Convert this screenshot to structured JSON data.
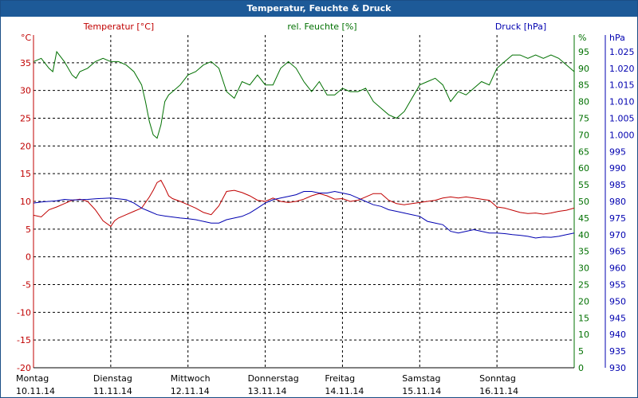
{
  "window": {
    "title": "Temperatur, Feuchte & Druck"
  },
  "colors": {
    "temperature": "#c00000",
    "humidity": "#007000",
    "pressure": "#0000b0",
    "grid": "#000000",
    "titlebar": "#1d5a98"
  },
  "chart_data": {
    "type": "line",
    "title": "Temperatur, Feuchte & Druck",
    "grid": true,
    "legend_position": "top",
    "x_tick_labels": [
      {
        "day": "Montag",
        "date": "10.11.14"
      },
      {
        "day": "Dienstag",
        "date": "11.11.14"
      },
      {
        "day": "Mittwoch",
        "date": "12.11.14"
      },
      {
        "day": "Donnerstag",
        "date": "13.11.14"
      },
      {
        "day": "Freitag",
        "date": "14.11.14"
      },
      {
        "day": "Samstag",
        "date": "15.11.14"
      },
      {
        "day": "Sonntag",
        "date": "16.11.14"
      }
    ],
    "xlim": [
      0,
      7
    ],
    "axes": {
      "temperature": {
        "label": "Temperatur [°C]",
        "unit": "°C",
        "ylim": [
          -20,
          40
        ],
        "ticks": [
          "35",
          "30",
          "25",
          "20",
          "15",
          "10",
          "5",
          "0",
          "-5",
          "-10",
          "-15",
          "-20"
        ]
      },
      "humidity": {
        "label": "rel. Feuchte [%]",
        "unit": "%",
        "ylim": [
          0,
          100
        ],
        "ticks": [
          "95",
          "90",
          "85",
          "80",
          "75",
          "70",
          "65",
          "60",
          "55",
          "50",
          "45",
          "40",
          "35",
          "30",
          "25",
          "20",
          "15",
          "10",
          "5",
          "0"
        ]
      },
      "pressure": {
        "label": "Druck [hPa]",
        "unit": "hPa",
        "ylim": [
          930,
          1030
        ],
        "ticks": [
          "1.025",
          "1.020",
          "1.015",
          "1.010",
          "1.005",
          "1.000",
          "995",
          "990",
          "985",
          "980",
          "975",
          "970",
          "965",
          "960",
          "955",
          "950",
          "945",
          "940",
          "935",
          "930"
        ]
      }
    },
    "series": [
      {
        "name": "Temperatur [°C]",
        "axis": "temperature",
        "color": "#c00000",
        "x": [
          0,
          0.1,
          0.2,
          0.3,
          0.4,
          0.5,
          0.6,
          0.7,
          0.8,
          0.9,
          1.0,
          1.05,
          1.1,
          1.2,
          1.3,
          1.4,
          1.5,
          1.55,
          1.6,
          1.65,
          1.7,
          1.75,
          1.8,
          1.9,
          2.0,
          2.1,
          2.2,
          2.3,
          2.4,
          2.5,
          2.6,
          2.7,
          2.8,
          2.9,
          3.0,
          3.1,
          3.2,
          3.3,
          3.4,
          3.5,
          3.6,
          3.7,
          3.8,
          3.9,
          4.0,
          4.1,
          4.2,
          4.3,
          4.4,
          4.5,
          4.6,
          4.7,
          4.8,
          4.9,
          5.0,
          5.1,
          5.2,
          5.3,
          5.4,
          5.5,
          5.6,
          5.7,
          5.8,
          5.9,
          6.0,
          6.1,
          6.2,
          6.3,
          6.4,
          6.5,
          6.6,
          6.7,
          6.8,
          6.9,
          7.0
        ],
        "values": [
          7.5,
          7.2,
          8.5,
          9.0,
          9.6,
          10.2,
          10.4,
          10.0,
          8.5,
          6.5,
          5.5,
          6.5,
          7.0,
          7.6,
          8.2,
          8.8,
          10.8,
          12.0,
          13.4,
          13.8,
          12.5,
          11.0,
          10.5,
          10.0,
          9.4,
          8.8,
          8.0,
          7.6,
          9.2,
          11.8,
          12.0,
          11.6,
          11.0,
          10.2,
          10.0,
          10.6,
          10.0,
          9.8,
          10.0,
          10.4,
          11.0,
          11.4,
          11.0,
          10.4,
          10.5,
          10.0,
          10.2,
          10.8,
          11.4,
          11.4,
          10.2,
          9.6,
          9.4,
          9.6,
          9.8,
          10.0,
          10.2,
          10.6,
          10.8,
          10.6,
          10.8,
          10.6,
          10.4,
          10.2,
          9.0,
          8.8,
          8.4,
          8.0,
          7.8,
          7.9,
          7.7,
          7.9,
          8.2,
          8.4,
          8.8
        ]
      },
      {
        "name": "rel. Feuchte [%]",
        "axis": "humidity",
        "color": "#007000",
        "x": [
          0,
          0.1,
          0.2,
          0.25,
          0.3,
          0.4,
          0.5,
          0.55,
          0.6,
          0.7,
          0.8,
          0.9,
          1.0,
          1.1,
          1.2,
          1.3,
          1.4,
          1.45,
          1.5,
          1.55,
          1.6,
          1.65,
          1.7,
          1.75,
          1.8,
          1.9,
          2.0,
          2.1,
          2.2,
          2.3,
          2.4,
          2.5,
          2.6,
          2.7,
          2.8,
          2.9,
          3.0,
          3.1,
          3.2,
          3.3,
          3.4,
          3.5,
          3.6,
          3.7,
          3.8,
          3.9,
          4.0,
          4.1,
          4.2,
          4.3,
          4.4,
          4.5,
          4.6,
          4.7,
          4.8,
          4.9,
          5.0,
          5.1,
          5.2,
          5.3,
          5.4,
          5.5,
          5.6,
          5.7,
          5.8,
          5.9,
          6.0,
          6.1,
          6.2,
          6.3,
          6.4,
          6.5,
          6.6,
          6.7,
          6.8,
          6.9,
          7.0
        ],
        "values": [
          92,
          93,
          90,
          89,
          95,
          92,
          88,
          87,
          89,
          90,
          92,
          93,
          92,
          92,
          91,
          89,
          85,
          80,
          74,
          70,
          69,
          73,
          80,
          82,
          83,
          85,
          88,
          89,
          91,
          92,
          90,
          83,
          81,
          86,
          85,
          88,
          85,
          85,
          90,
          92,
          90,
          86,
          83,
          86,
          82,
          82,
          84,
          83,
          83,
          84,
          80,
          78,
          76,
          75,
          77,
          81,
          85,
          86,
          87,
          85,
          80,
          83,
          82,
          84,
          86,
          85,
          90,
          92,
          94,
          94,
          93,
          94,
          93,
          94,
          93,
          91,
          89
        ]
      },
      {
        "name": "Druck [hPa]",
        "axis": "pressure",
        "color": "#0000b0",
        "x": [
          0,
          0.1,
          0.2,
          0.3,
          0.4,
          0.5,
          0.6,
          0.7,
          0.8,
          0.9,
          1.0,
          1.1,
          1.2,
          1.3,
          1.4,
          1.5,
          1.6,
          1.7,
          1.8,
          1.9,
          2.0,
          2.1,
          2.2,
          2.3,
          2.4,
          2.5,
          2.6,
          2.7,
          2.8,
          2.9,
          3.0,
          3.1,
          3.2,
          3.3,
          3.4,
          3.5,
          3.6,
          3.7,
          3.8,
          3.9,
          4.0,
          4.1,
          4.2,
          4.3,
          4.4,
          4.5,
          4.6,
          4.7,
          4.8,
          4.9,
          5.0,
          5.1,
          5.2,
          5.3,
          5.4,
          5.5,
          5.6,
          5.7,
          5.8,
          5.9,
          6.0,
          6.1,
          6.2,
          6.3,
          6.4,
          6.5,
          6.6,
          6.7,
          6.8,
          6.9,
          7.0
        ],
        "values": [
          979.5,
          979.8,
          980,
          980.2,
          980.6,
          980.4,
          980.5,
          980.6,
          980.8,
          980.9,
          981,
          980.8,
          980.5,
          979.5,
          978,
          977,
          976,
          975.6,
          975.3,
          975,
          974.8,
          974.5,
          974,
          973.5,
          973.5,
          974.5,
          975,
          975.5,
          976.5,
          978,
          979.5,
          980.5,
          981,
          981.5,
          982,
          983,
          983,
          982.5,
          982.5,
          983,
          982.5,
          982,
          981,
          980,
          979,
          978.5,
          977.5,
          977,
          976.5,
          976,
          975.5,
          974,
          973.5,
          973,
          971,
          970.5,
          971,
          971.5,
          971,
          970.5,
          970.5,
          970.3,
          970,
          969.8,
          969.5,
          969,
          969.3,
          969.2,
          969.5,
          970,
          970.5
        ]
      }
    ]
  }
}
